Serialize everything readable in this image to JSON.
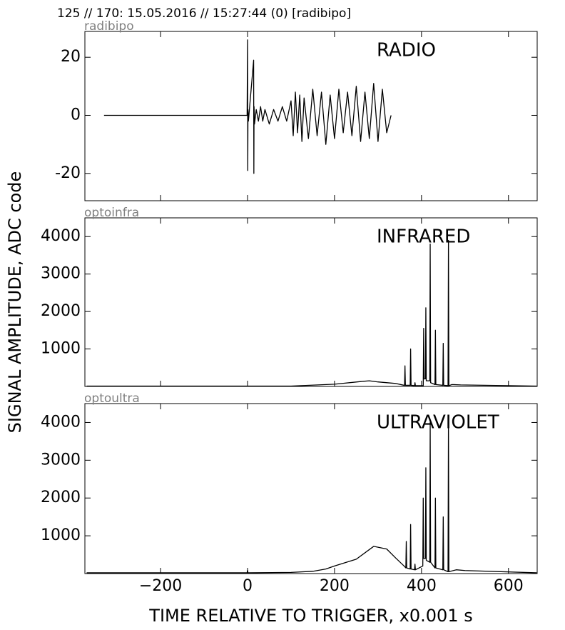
{
  "title": "125 // 170:   15.05.2016 // 15:27:44 (0)  [radibipo]",
  "xlabel": "TIME RELATIVE TO TRIGGER,   x0.001 s",
  "ylabel": "SIGNAL AMPLITUDE,  ADC code",
  "xlim": [
    -374,
    666
  ],
  "xticks": [
    {
      "value": -200,
      "label": "−200"
    },
    0,
    200,
    400,
    600
  ],
  "chart_data": [
    {
      "type": "line",
      "channel": "radibipo",
      "annotation": "RADIO",
      "color": "#000000",
      "ylim": [
        -29.4,
        28.9
      ],
      "yticks": [
        -20,
        0,
        20
      ],
      "x": [
        -330,
        -1,
        0,
        0.5,
        1,
        2,
        14,
        14.5,
        15,
        16,
        20,
        25,
        30,
        35,
        40,
        50,
        60,
        70,
        80,
        90,
        100,
        105,
        110,
        115,
        120,
        125,
        130,
        140,
        150,
        160,
        170,
        180,
        190,
        200,
        210,
        220,
        230,
        240,
        250,
        260,
        270,
        280,
        290,
        300,
        310,
        320,
        330
      ],
      "values": [
        0,
        0,
        26,
        -19,
        2,
        -2,
        19,
        -20,
        3,
        -3,
        2,
        -2,
        3,
        -2,
        2,
        -3,
        2,
        -2,
        3,
        -2,
        5,
        -7,
        8,
        -6,
        7,
        -9,
        6,
        -8,
        9,
        -7,
        8,
        -10,
        7,
        -8,
        9,
        -6,
        8,
        -7,
        10,
        -9,
        8,
        -8,
        11,
        -9,
        9,
        -6,
        0
      ]
    },
    {
      "type": "line",
      "channel": "optoinfra",
      "annotation": "INFRARED",
      "color": "#000000",
      "ylim": [
        0,
        4500
      ],
      "yticks": [
        1000,
        2000,
        3000,
        4000
      ],
      "x": [
        -370,
        100,
        200,
        260,
        280,
        300,
        340,
        360,
        361,
        362,
        363,
        374,
        375,
        376,
        384,
        385,
        386,
        404,
        405,
        406,
        409,
        410,
        411,
        419,
        420,
        421,
        431,
        432,
        433,
        449,
        450,
        451,
        461,
        462,
        463,
        470,
        490,
        665
      ],
      "values": [
        10,
        10,
        60,
        130,
        150,
        120,
        80,
        30,
        30,
        550,
        30,
        30,
        1000,
        30,
        20,
        100,
        20,
        20,
        1550,
        200,
        200,
        2100,
        150,
        150,
        3800,
        100,
        50,
        1500,
        50,
        30,
        1150,
        30,
        20,
        3900,
        20,
        50,
        40,
        10
      ]
    },
    {
      "type": "line",
      "channel": "optoultra",
      "annotation": "ULTRAVIOLET",
      "color": "#000000",
      "ylim": [
        0,
        4500
      ],
      "yticks": [
        1000,
        2000,
        3000,
        4000
      ],
      "x": [
        -370,
        -1,
        0,
        1,
        100,
        150,
        180,
        200,
        250,
        290,
        320,
        340,
        360,
        364,
        365,
        366,
        374,
        375,
        376,
        384,
        385,
        386,
        403,
        404,
        405,
        409,
        410,
        411,
        419,
        420,
        421,
        431,
        432,
        433,
        449,
        450,
        451,
        461,
        462,
        463,
        480,
        500,
        665
      ],
      "values": [
        20,
        20,
        90,
        20,
        30,
        60,
        120,
        200,
        380,
        720,
        650,
        420,
        200,
        150,
        850,
        150,
        120,
        1300,
        120,
        100,
        250,
        100,
        200,
        2000,
        400,
        400,
        2800,
        350,
        300,
        4000,
        300,
        150,
        2000,
        150,
        100,
        1500,
        100,
        50,
        4000,
        50,
        100,
        80,
        20
      ]
    }
  ]
}
